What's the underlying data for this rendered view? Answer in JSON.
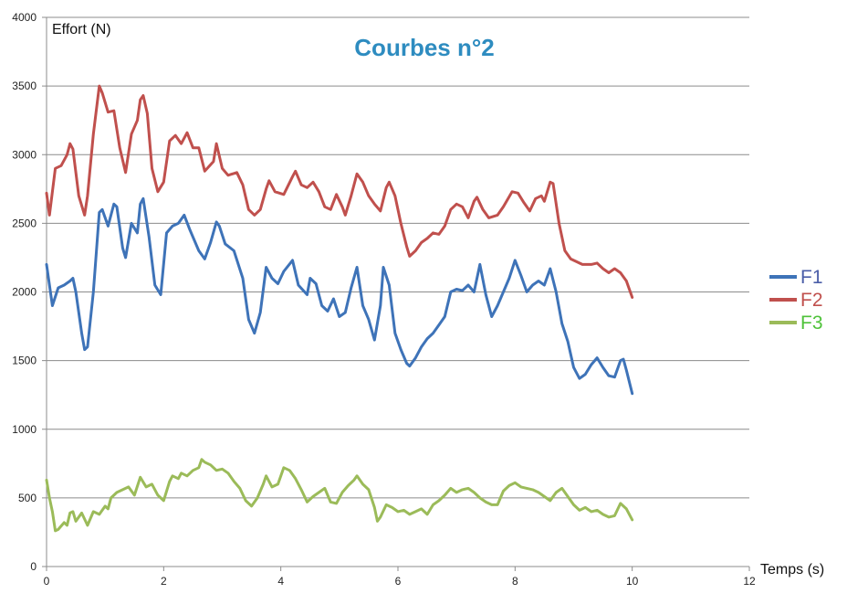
{
  "chart_data": {
    "type": "line",
    "title": "Courbes n°2",
    "xlabel": "Temps (s)",
    "ylabel": "Effort (N)",
    "xlim": [
      0,
      12
    ],
    "ylim": [
      0,
      4000
    ],
    "xticks": [
      0,
      2,
      4,
      6,
      8,
      10,
      12
    ],
    "yticks": [
      0,
      500,
      1000,
      1500,
      2000,
      2500,
      3000,
      3500,
      4000
    ],
    "grid": "horizontal",
    "legend_position": "right",
    "colors": {
      "title": "#2E8CC0",
      "grid": "#8c8c8c",
      "axis": "#8c8c8c"
    },
    "series": [
      {
        "name": "F1",
        "color": "#3E73B8",
        "label_color": "#4B5EA8",
        "points": [
          [
            0,
            2200
          ],
          [
            0.1,
            1900
          ],
          [
            0.2,
            2030
          ],
          [
            0.3,
            2050
          ],
          [
            0.4,
            2080
          ],
          [
            0.45,
            2100
          ],
          [
            0.5,
            2000
          ],
          [
            0.6,
            1700
          ],
          [
            0.65,
            1580
          ],
          [
            0.7,
            1600
          ],
          [
            0.8,
            2000
          ],
          [
            0.9,
            2580
          ],
          [
            0.95,
            2600
          ],
          [
            1.05,
            2480
          ],
          [
            1.15,
            2640
          ],
          [
            1.2,
            2620
          ],
          [
            1.3,
            2320
          ],
          [
            1.35,
            2250
          ],
          [
            1.45,
            2500
          ],
          [
            1.55,
            2430
          ],
          [
            1.6,
            2640
          ],
          [
            1.65,
            2680
          ],
          [
            1.75,
            2400
          ],
          [
            1.85,
            2050
          ],
          [
            1.95,
            1980
          ],
          [
            2.05,
            2430
          ],
          [
            2.15,
            2480
          ],
          [
            2.25,
            2500
          ],
          [
            2.35,
            2560
          ],
          [
            2.45,
            2450
          ],
          [
            2.6,
            2300
          ],
          [
            2.7,
            2240
          ],
          [
            2.8,
            2360
          ],
          [
            2.9,
            2510
          ],
          [
            2.95,
            2480
          ],
          [
            3.05,
            2350
          ],
          [
            3.2,
            2300
          ],
          [
            3.35,
            2100
          ],
          [
            3.45,
            1800
          ],
          [
            3.55,
            1700
          ],
          [
            3.65,
            1850
          ],
          [
            3.75,
            2180
          ],
          [
            3.85,
            2100
          ],
          [
            3.95,
            2060
          ],
          [
            4.05,
            2150
          ],
          [
            4.2,
            2230
          ],
          [
            4.3,
            2050
          ],
          [
            4.45,
            1980
          ],
          [
            4.5,
            2100
          ],
          [
            4.6,
            2060
          ],
          [
            4.7,
            1900
          ],
          [
            4.8,
            1860
          ],
          [
            4.9,
            1950
          ],
          [
            5.0,
            1820
          ],
          [
            5.1,
            1850
          ],
          [
            5.2,
            2030
          ],
          [
            5.3,
            2180
          ],
          [
            5.4,
            1900
          ],
          [
            5.5,
            1800
          ],
          [
            5.6,
            1650
          ],
          [
            5.7,
            1900
          ],
          [
            5.75,
            2180
          ],
          [
            5.85,
            2050
          ],
          [
            5.95,
            1700
          ],
          [
            6.05,
            1580
          ],
          [
            6.15,
            1480
          ],
          [
            6.2,
            1460
          ],
          [
            6.3,
            1520
          ],
          [
            6.4,
            1600
          ],
          [
            6.5,
            1660
          ],
          [
            6.6,
            1700
          ],
          [
            6.7,
            1760
          ],
          [
            6.8,
            1820
          ],
          [
            6.9,
            2000
          ],
          [
            7.0,
            2020
          ],
          [
            7.1,
            2010
          ],
          [
            7.2,
            2050
          ],
          [
            7.3,
            2000
          ],
          [
            7.4,
            2200
          ],
          [
            7.5,
            1980
          ],
          [
            7.6,
            1820
          ],
          [
            7.7,
            1900
          ],
          [
            7.8,
            2000
          ],
          [
            7.9,
            2100
          ],
          [
            8.0,
            2230
          ],
          [
            8.1,
            2120
          ],
          [
            8.2,
            2000
          ],
          [
            8.3,
            2050
          ],
          [
            8.4,
            2080
          ],
          [
            8.5,
            2050
          ],
          [
            8.6,
            2170
          ],
          [
            8.7,
            2000
          ],
          [
            8.8,
            1770
          ],
          [
            8.9,
            1640
          ],
          [
            9.0,
            1450
          ],
          [
            9.1,
            1370
          ],
          [
            9.2,
            1400
          ],
          [
            9.3,
            1470
          ],
          [
            9.4,
            1520
          ],
          [
            9.5,
            1450
          ],
          [
            9.6,
            1390
          ],
          [
            9.7,
            1380
          ],
          [
            9.8,
            1500
          ],
          [
            9.85,
            1510
          ],
          [
            9.9,
            1430
          ],
          [
            10.0,
            1260
          ]
        ]
      },
      {
        "name": "F2",
        "color": "#C0504D",
        "label_color": "#C0504D",
        "points": [
          [
            0,
            2720
          ],
          [
            0.05,
            2560
          ],
          [
            0.15,
            2900
          ],
          [
            0.25,
            2920
          ],
          [
            0.35,
            3000
          ],
          [
            0.4,
            3080
          ],
          [
            0.45,
            3040
          ],
          [
            0.55,
            2700
          ],
          [
            0.65,
            2560
          ],
          [
            0.7,
            2700
          ],
          [
            0.8,
            3150
          ],
          [
            0.9,
            3500
          ],
          [
            0.95,
            3450
          ],
          [
            1.05,
            3310
          ],
          [
            1.15,
            3320
          ],
          [
            1.25,
            3050
          ],
          [
            1.35,
            2870
          ],
          [
            1.45,
            3150
          ],
          [
            1.55,
            3250
          ],
          [
            1.6,
            3400
          ],
          [
            1.65,
            3430
          ],
          [
            1.72,
            3300
          ],
          [
            1.8,
            2900
          ],
          [
            1.9,
            2730
          ],
          [
            2.0,
            2800
          ],
          [
            2.1,
            3100
          ],
          [
            2.2,
            3140
          ],
          [
            2.3,
            3080
          ],
          [
            2.4,
            3160
          ],
          [
            2.5,
            3050
          ],
          [
            2.6,
            3050
          ],
          [
            2.7,
            2880
          ],
          [
            2.85,
            2950
          ],
          [
            2.9,
            3080
          ],
          [
            3.0,
            2900
          ],
          [
            3.1,
            2850
          ],
          [
            3.25,
            2870
          ],
          [
            3.35,
            2780
          ],
          [
            3.45,
            2600
          ],
          [
            3.55,
            2560
          ],
          [
            3.65,
            2600
          ],
          [
            3.75,
            2750
          ],
          [
            3.8,
            2810
          ],
          [
            3.9,
            2730
          ],
          [
            4.05,
            2710
          ],
          [
            4.2,
            2840
          ],
          [
            4.25,
            2880
          ],
          [
            4.35,
            2780
          ],
          [
            4.45,
            2760
          ],
          [
            4.55,
            2800
          ],
          [
            4.65,
            2730
          ],
          [
            4.75,
            2620
          ],
          [
            4.85,
            2600
          ],
          [
            4.95,
            2710
          ],
          [
            5.05,
            2620
          ],
          [
            5.1,
            2560
          ],
          [
            5.2,
            2700
          ],
          [
            5.3,
            2860
          ],
          [
            5.4,
            2800
          ],
          [
            5.5,
            2700
          ],
          [
            5.6,
            2640
          ],
          [
            5.7,
            2590
          ],
          [
            5.8,
            2760
          ],
          [
            5.85,
            2800
          ],
          [
            5.95,
            2700
          ],
          [
            6.05,
            2500
          ],
          [
            6.15,
            2330
          ],
          [
            6.2,
            2260
          ],
          [
            6.3,
            2300
          ],
          [
            6.4,
            2360
          ],
          [
            6.5,
            2390
          ],
          [
            6.6,
            2430
          ],
          [
            6.7,
            2420
          ],
          [
            6.8,
            2480
          ],
          [
            6.9,
            2600
          ],
          [
            7.0,
            2640
          ],
          [
            7.1,
            2620
          ],
          [
            7.2,
            2540
          ],
          [
            7.3,
            2660
          ],
          [
            7.35,
            2690
          ],
          [
            7.45,
            2600
          ],
          [
            7.55,
            2540
          ],
          [
            7.7,
            2560
          ],
          [
            7.8,
            2620
          ],
          [
            7.95,
            2730
          ],
          [
            8.05,
            2720
          ],
          [
            8.15,
            2650
          ],
          [
            8.25,
            2590
          ],
          [
            8.35,
            2680
          ],
          [
            8.45,
            2700
          ],
          [
            8.5,
            2660
          ],
          [
            8.6,
            2800
          ],
          [
            8.65,
            2790
          ],
          [
            8.75,
            2500
          ],
          [
            8.85,
            2300
          ],
          [
            8.95,
            2240
          ],
          [
            9.05,
            2220
          ],
          [
            9.15,
            2200
          ],
          [
            9.3,
            2200
          ],
          [
            9.4,
            2210
          ],
          [
            9.5,
            2170
          ],
          [
            9.6,
            2140
          ],
          [
            9.7,
            2170
          ],
          [
            9.8,
            2140
          ],
          [
            9.9,
            2080
          ],
          [
            10.0,
            1960
          ]
        ]
      },
      {
        "name": "F3",
        "color": "#9BBB59",
        "label_color": "#4FC23A",
        "points": [
          [
            0,
            630
          ],
          [
            0.05,
            500
          ],
          [
            0.1,
            400
          ],
          [
            0.15,
            260
          ],
          [
            0.2,
            270
          ],
          [
            0.3,
            320
          ],
          [
            0.35,
            300
          ],
          [
            0.4,
            390
          ],
          [
            0.45,
            400
          ],
          [
            0.5,
            330
          ],
          [
            0.6,
            390
          ],
          [
            0.7,
            300
          ],
          [
            0.8,
            400
          ],
          [
            0.9,
            380
          ],
          [
            1.0,
            440
          ],
          [
            1.05,
            420
          ],
          [
            1.1,
            500
          ],
          [
            1.2,
            540
          ],
          [
            1.3,
            560
          ],
          [
            1.4,
            580
          ],
          [
            1.5,
            520
          ],
          [
            1.6,
            650
          ],
          [
            1.7,
            580
          ],
          [
            1.8,
            600
          ],
          [
            1.9,
            520
          ],
          [
            2.0,
            480
          ],
          [
            2.1,
            620
          ],
          [
            2.15,
            660
          ],
          [
            2.25,
            640
          ],
          [
            2.3,
            680
          ],
          [
            2.4,
            660
          ],
          [
            2.5,
            700
          ],
          [
            2.6,
            720
          ],
          [
            2.65,
            780
          ],
          [
            2.7,
            760
          ],
          [
            2.8,
            740
          ],
          [
            2.9,
            700
          ],
          [
            3.0,
            710
          ],
          [
            3.1,
            680
          ],
          [
            3.2,
            620
          ],
          [
            3.3,
            570
          ],
          [
            3.4,
            480
          ],
          [
            3.5,
            440
          ],
          [
            3.6,
            500
          ],
          [
            3.7,
            600
          ],
          [
            3.75,
            660
          ],
          [
            3.85,
            580
          ],
          [
            3.95,
            600
          ],
          [
            4.05,
            720
          ],
          [
            4.15,
            700
          ],
          [
            4.25,
            640
          ],
          [
            4.35,
            560
          ],
          [
            4.45,
            470
          ],
          [
            4.55,
            510
          ],
          [
            4.65,
            540
          ],
          [
            4.75,
            570
          ],
          [
            4.85,
            470
          ],
          [
            4.95,
            460
          ],
          [
            5.05,
            540
          ],
          [
            5.15,
            590
          ],
          [
            5.25,
            630
          ],
          [
            5.3,
            660
          ],
          [
            5.4,
            600
          ],
          [
            5.5,
            560
          ],
          [
            5.6,
            430
          ],
          [
            5.65,
            330
          ],
          [
            5.7,
            360
          ],
          [
            5.8,
            450
          ],
          [
            5.9,
            430
          ],
          [
            6.0,
            400
          ],
          [
            6.1,
            410
          ],
          [
            6.2,
            380
          ],
          [
            6.3,
            400
          ],
          [
            6.4,
            420
          ],
          [
            6.5,
            380
          ],
          [
            6.6,
            450
          ],
          [
            6.7,
            480
          ],
          [
            6.8,
            520
          ],
          [
            6.9,
            570
          ],
          [
            7.0,
            540
          ],
          [
            7.1,
            560
          ],
          [
            7.2,
            570
          ],
          [
            7.3,
            540
          ],
          [
            7.4,
            500
          ],
          [
            7.5,
            470
          ],
          [
            7.6,
            450
          ],
          [
            7.7,
            450
          ],
          [
            7.8,
            550
          ],
          [
            7.9,
            590
          ],
          [
            8.0,
            610
          ],
          [
            8.1,
            580
          ],
          [
            8.2,
            570
          ],
          [
            8.3,
            560
          ],
          [
            8.4,
            540
          ],
          [
            8.5,
            510
          ],
          [
            8.6,
            480
          ],
          [
            8.7,
            540
          ],
          [
            8.8,
            570
          ],
          [
            8.9,
            510
          ],
          [
            9.0,
            450
          ],
          [
            9.1,
            410
          ],
          [
            9.2,
            430
          ],
          [
            9.3,
            400
          ],
          [
            9.4,
            410
          ],
          [
            9.5,
            380
          ],
          [
            9.6,
            360
          ],
          [
            9.7,
            370
          ],
          [
            9.8,
            460
          ],
          [
            9.9,
            420
          ],
          [
            10.0,
            340
          ]
        ]
      }
    ]
  }
}
